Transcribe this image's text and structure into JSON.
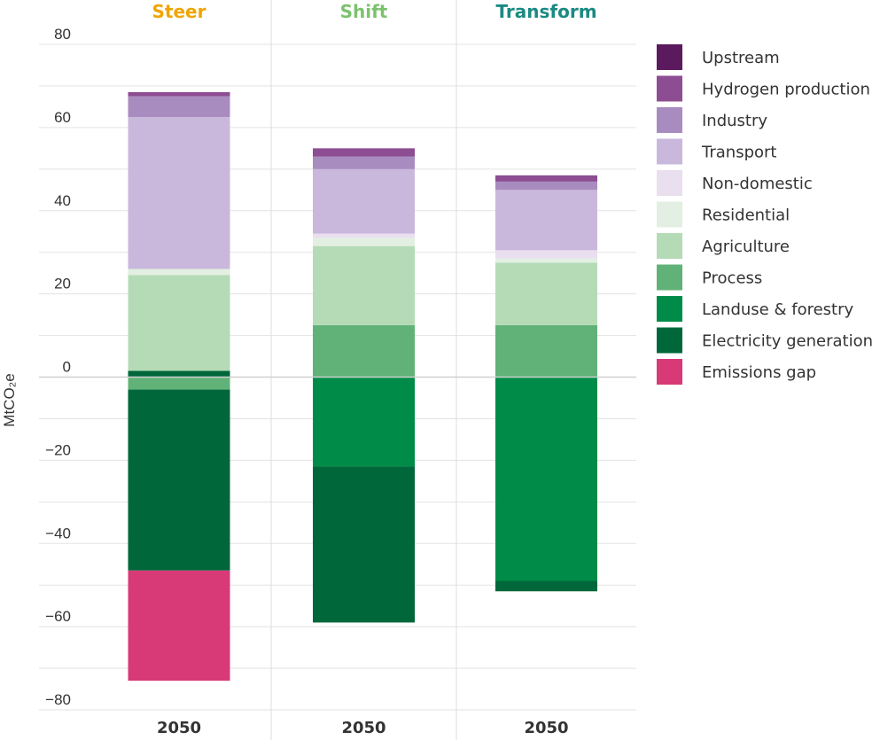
{
  "chart_data": {
    "type": "bar",
    "stacked": true,
    "ylabel": "MtCO₂e",
    "ylim": [
      -80,
      80
    ],
    "yticks": [
      80,
      60,
      40,
      20,
      0,
      -20,
      -40,
      -60,
      -80
    ],
    "ytick_labels": [
      "80",
      "60",
      "40",
      "20",
      "0",
      "−20",
      "−40",
      "−60",
      "−80"
    ],
    "grid": true,
    "legend_position": "right",
    "panels": [
      {
        "title": "Steer",
        "title_color": "#f0a500",
        "category": "2050",
        "segments": [
          {
            "series": "Electricity generation",
            "value": 1.5
          },
          {
            "series": "Agriculture",
            "value": 23.0
          },
          {
            "series": "Residential",
            "value": 1.5
          },
          {
            "series": "Transport",
            "value": 36.5
          },
          {
            "series": "Industry",
            "value": 5.0
          },
          {
            "series": "Hydrogen production",
            "value": 1.0
          },
          {
            "series": "Process",
            "value": -3.0
          },
          {
            "series": "Electricity generation",
            "value": -43.5
          },
          {
            "series": "Emissions gap",
            "value": -26.5
          }
        ]
      },
      {
        "title": "Shift",
        "title_color": "#7cc26e",
        "category": "2050",
        "segments": [
          {
            "series": "Process",
            "value": 12.5
          },
          {
            "series": "Agriculture",
            "value": 19.0
          },
          {
            "series": "Residential",
            "value": 2.0
          },
          {
            "series": "Non-domestic",
            "value": 1.0
          },
          {
            "series": "Transport",
            "value": 15.5
          },
          {
            "series": "Industry",
            "value": 3.0
          },
          {
            "series": "Hydrogen production",
            "value": 2.0
          },
          {
            "series": "Landuse & forestry",
            "value": -21.5
          },
          {
            "series": "Electricity generation",
            "value": -37.5
          }
        ]
      },
      {
        "title": "Transform",
        "title_color": "#1a8a82",
        "category": "2050",
        "segments": [
          {
            "series": "Process",
            "value": 12.5
          },
          {
            "series": "Agriculture",
            "value": 15.0
          },
          {
            "series": "Residential",
            "value": 1.0
          },
          {
            "series": "Non-domestic",
            "value": 2.0
          },
          {
            "series": "Transport",
            "value": 14.5
          },
          {
            "series": "Industry",
            "value": 2.0
          },
          {
            "series": "Hydrogen production",
            "value": 1.5
          },
          {
            "series": "Landuse & forestry",
            "value": -49.0
          },
          {
            "series": "Electricity generation",
            "value": -2.5
          }
        ]
      }
    ],
    "legend": [
      {
        "name": "Upstream",
        "color": "#5c1a5e"
      },
      {
        "name": "Hydrogen production",
        "color": "#8d4d92"
      },
      {
        "name": "Industry",
        "color": "#a88cc0"
      },
      {
        "name": "Transport",
        "color": "#c9b8dc"
      },
      {
        "name": "Non-domestic",
        "color": "#e9dfef"
      },
      {
        "name": "Residential",
        "color": "#e2efe2"
      },
      {
        "name": "Agriculture",
        "color": "#b4dbb6"
      },
      {
        "name": "Process",
        "color": "#61b278"
      },
      {
        "name": "Landuse & forestry",
        "color": "#008c48"
      },
      {
        "name": "Electricity generation",
        "color": "#00673a"
      },
      {
        "name": "Emissions gap",
        "color": "#d83a78"
      }
    ]
  }
}
